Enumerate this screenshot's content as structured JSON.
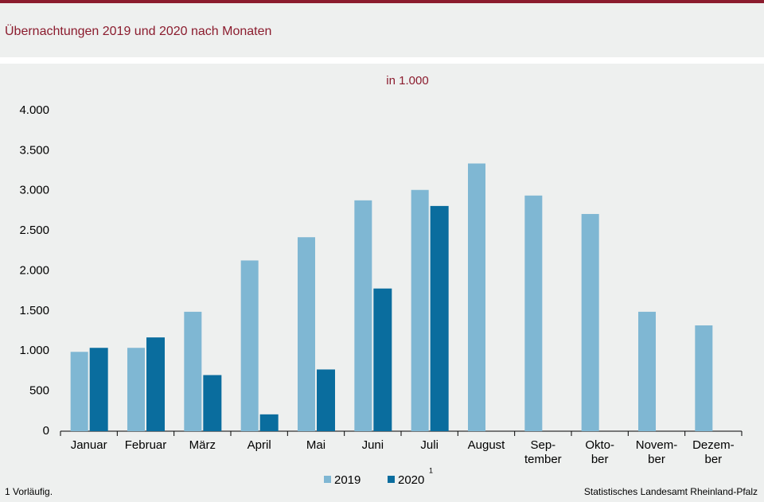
{
  "chart_data": {
    "type": "bar",
    "title": "Übernachtungen  2019 und 2020 nach Monaten",
    "unit_label": "in 1.000",
    "categories": [
      "Januar",
      "Februar",
      "März",
      "April",
      "Mai",
      "Juni",
      "Juli",
      "August",
      "Sep-\ntember",
      "Okto-\nber",
      "Novem-\nber",
      "Dezem-\nber"
    ],
    "series": [
      {
        "name": "2019",
        "color": "#7fb7d3",
        "values": [
          990,
          1040,
          1490,
          2130,
          2420,
          2880,
          3010,
          3340,
          2940,
          2710,
          1490,
          1320
        ]
      },
      {
        "name": "2020",
        "color": "#0a6d9e",
        "footnote_marker": "1",
        "values": [
          1040,
          1170,
          700,
          210,
          770,
          1780,
          2810,
          null,
          null,
          null,
          null,
          null
        ]
      }
    ],
    "ylim": [
      0,
      4000
    ],
    "yticks": [
      0,
      500,
      {
        "value": 1000,
        "label": "1.000"
      },
      {
        "value": 1500,
        "label": "1.500"
      },
      {
        "value": 2000,
        "label": "2.000"
      },
      {
        "value": 2500,
        "label": "2.500"
      },
      {
        "value": 3000,
        "label": "3.000"
      },
      {
        "value": 3500,
        "label": "3.500"
      },
      {
        "value": 4000,
        "label": "4.000"
      }
    ],
    "grid": false,
    "legend": "bottom",
    "footnote": "1 Vorläufig.",
    "source": "Statistisches Landesamt Rheinland-Pfalz"
  }
}
